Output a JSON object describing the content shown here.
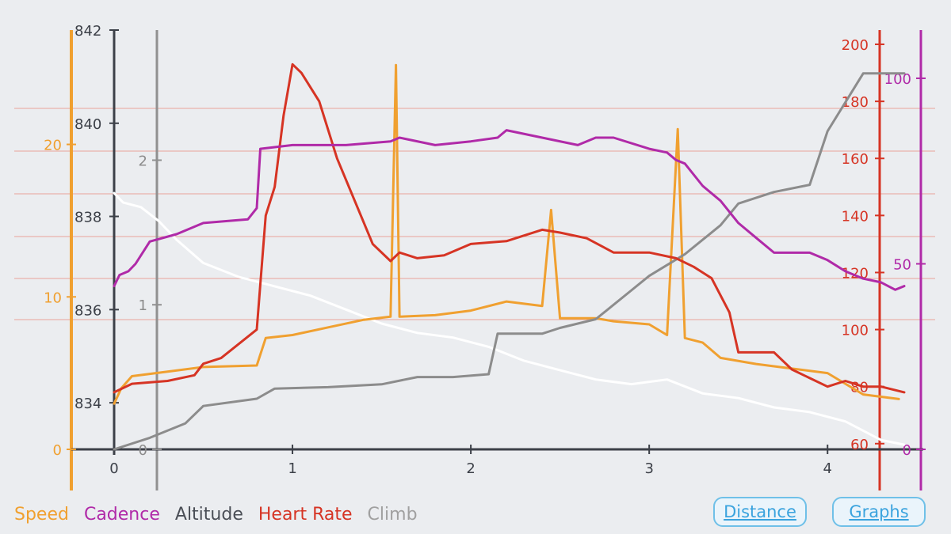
{
  "legend": {
    "speed": "Speed",
    "cadence": "Cadence",
    "altitude": "Altitude",
    "heart_rate": "Heart Rate",
    "climb": "Climb"
  },
  "buttons": {
    "distance": "Distance",
    "graphs": "Graphs"
  },
  "colors": {
    "speed": "#f0a030",
    "cadence": "#b02aa8",
    "altitude": "#ffffff",
    "heart_rate": "#d63424",
    "climb": "#8c8c8c",
    "axis": "#3c4048",
    "button": "#3aa3de"
  },
  "chart_data": {
    "type": "line",
    "x_ticks": [
      "0",
      "1",
      "2",
      "3",
      "4"
    ],
    "xlim": [
      0,
      4.43
    ],
    "axes": {
      "altitude": {
        "ticks": [
          "834",
          "836",
          "838",
          "840",
          "842"
        ],
        "range": [
          833,
          842
        ]
      },
      "speed": {
        "ticks": [
          "0",
          "10",
          "20"
        ],
        "range": [
          0,
          27.5
        ]
      },
      "climb": {
        "ticks": [
          "0",
          "1",
          "2"
        ],
        "range": [
          0,
          2.9
        ]
      },
      "heart_rate": {
        "ticks": [
          "60",
          "80",
          "100",
          "120",
          "140",
          "160",
          "180",
          "200"
        ],
        "range": [
          58,
          205
        ]
      },
      "cadence": {
        "ticks": [
          "0",
          "50",
          "100"
        ],
        "range": [
          0,
          113
        ]
      }
    },
    "series": [
      {
        "name": "Altitude",
        "axis": "altitude",
        "x": [
          0,
          0.05,
          0.15,
          0.25,
          0.35,
          0.5,
          0.7,
          0.9,
          1.1,
          1.3,
          1.5,
          1.7,
          1.9,
          2.1,
          2.3,
          2.5,
          2.7,
          2.9,
          3.1,
          3.3,
          3.5,
          3.7,
          3.9,
          4.1,
          4.3,
          4.43
        ],
        "y": [
          838.5,
          838.3,
          838.2,
          837.9,
          837.5,
          837.0,
          836.7,
          836.5,
          836.3,
          836.0,
          835.7,
          835.5,
          835.4,
          835.2,
          834.9,
          834.7,
          834.5,
          834.4,
          834.5,
          834.2,
          834.1,
          833.9,
          833.8,
          833.6,
          833.2,
          833.1
        ]
      },
      {
        "name": "Speed",
        "axis": "speed",
        "x": [
          0,
          0.04,
          0.1,
          0.3,
          0.5,
          0.8,
          0.85,
          1.0,
          1.2,
          1.4,
          1.55,
          1.58,
          1.6,
          1.8,
          2.0,
          2.2,
          2.4,
          2.45,
          2.5,
          2.7,
          2.8,
          3.0,
          3.1,
          3.16,
          3.2,
          3.3,
          3.4,
          3.6,
          3.8,
          4.0,
          4.2,
          4.4
        ],
        "y": [
          3,
          4,
          4.8,
          5.1,
          5.4,
          5.5,
          7.3,
          7.5,
          8.0,
          8.5,
          8.7,
          25.2,
          8.7,
          8.8,
          9.1,
          9.7,
          9.4,
          15.7,
          8.6,
          8.6,
          8.4,
          8.2,
          7.5,
          21.0,
          7.3,
          7.0,
          6.0,
          5.6,
          5.3,
          5.0,
          3.6,
          3.3
        ]
      },
      {
        "name": "Climb",
        "axis": "climb",
        "x": [
          0,
          0.2,
          0.4,
          0.5,
          0.8,
          0.9,
          1.2,
          1.5,
          1.7,
          1.9,
          2.1,
          2.15,
          2.4,
          2.5,
          2.7,
          2.9,
          3.0,
          3.2,
          3.4,
          3.5,
          3.7,
          3.9,
          4.0,
          4.2,
          4.43
        ],
        "y": [
          0.0,
          0.08,
          0.18,
          0.3,
          0.35,
          0.42,
          0.43,
          0.45,
          0.5,
          0.5,
          0.52,
          0.8,
          0.8,
          0.84,
          0.9,
          1.1,
          1.2,
          1.35,
          1.55,
          1.7,
          1.78,
          1.83,
          2.2,
          2.6,
          2.6
        ]
      },
      {
        "name": "Heart Rate",
        "axis": "heart_rate",
        "x": [
          0,
          0.1,
          0.3,
          0.45,
          0.5,
          0.6,
          0.8,
          0.85,
          0.9,
          0.95,
          1.0,
          1.05,
          1.15,
          1.25,
          1.35,
          1.45,
          1.55,
          1.6,
          1.7,
          1.85,
          2.0,
          2.2,
          2.4,
          2.5,
          2.65,
          2.8,
          3.0,
          3.15,
          3.25,
          3.35,
          3.45,
          3.5,
          3.6,
          3.7,
          3.8,
          3.9,
          4.0,
          4.1,
          4.2,
          4.3,
          4.43
        ],
        "y": [
          78,
          81,
          82,
          84,
          88,
          90,
          100,
          140,
          150,
          175,
          193,
          190,
          180,
          160,
          145,
          130,
          124,
          127,
          125,
          126,
          130,
          131,
          135,
          134,
          132,
          127,
          127,
          125,
          122,
          118,
          106,
          92,
          92,
          92,
          86,
          83,
          80,
          82,
          80,
          80,
          78
        ]
      },
      {
        "name": "Cadence",
        "axis": "cadence",
        "x": [
          0,
          0.03,
          0.08,
          0.12,
          0.2,
          0.35,
          0.5,
          0.75,
          0.8,
          0.82,
          1.0,
          1.3,
          1.55,
          1.6,
          1.8,
          2.0,
          2.15,
          2.2,
          2.4,
          2.6,
          2.7,
          2.8,
          3.0,
          3.1,
          3.15,
          3.2,
          3.3,
          3.4,
          3.5,
          3.6,
          3.7,
          3.8,
          3.9,
          4.0,
          4.1,
          4.2,
          4.3,
          4.38,
          4.43
        ],
        "y": [
          44,
          47,
          48,
          50,
          56,
          58,
          61,
          62,
          65,
          81,
          82,
          82,
          83,
          84,
          82,
          83,
          84,
          86,
          84,
          82,
          84,
          84,
          81,
          80,
          78,
          77,
          71,
          67,
          61,
          57,
          53,
          53,
          53,
          51,
          48,
          46,
          45,
          43,
          44
        ]
      }
    ]
  }
}
